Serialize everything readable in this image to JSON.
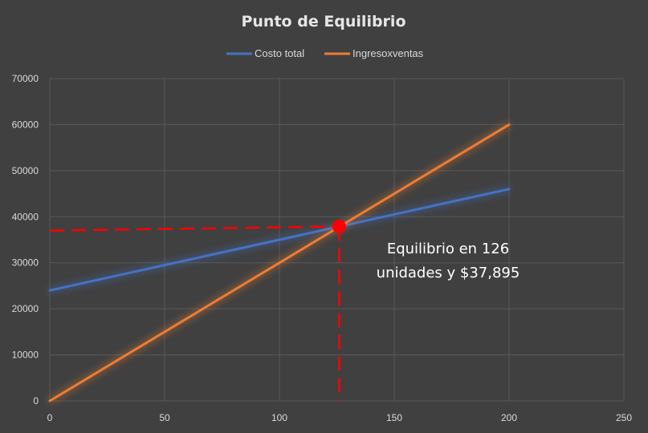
{
  "chart_data": {
    "type": "line",
    "title": "Punto de Equilibrio",
    "xlim": [
      0,
      250
    ],
    "ylim": [
      0,
      70000
    ],
    "x_ticks": [
      0,
      50,
      100,
      150,
      200,
      250
    ],
    "y_ticks": [
      0,
      10000,
      20000,
      30000,
      40000,
      50000,
      60000,
      70000
    ],
    "grid": true,
    "legend_position": "top",
    "series": [
      {
        "name": "Costo total",
        "color": "#4472c4",
        "x": [
          0,
          200
        ],
        "y": [
          24000,
          46000
        ]
      },
      {
        "name": "Ingresoxventas",
        "color": "#ed7d31",
        "x": [
          0,
          200
        ],
        "y": [
          0,
          60000
        ]
      }
    ],
    "break_even": {
      "x": 126,
      "y": 37895,
      "color": "#ff0000"
    },
    "annotation": [
      "Equilibrio en 126",
      "unidades y $37,895"
    ]
  }
}
